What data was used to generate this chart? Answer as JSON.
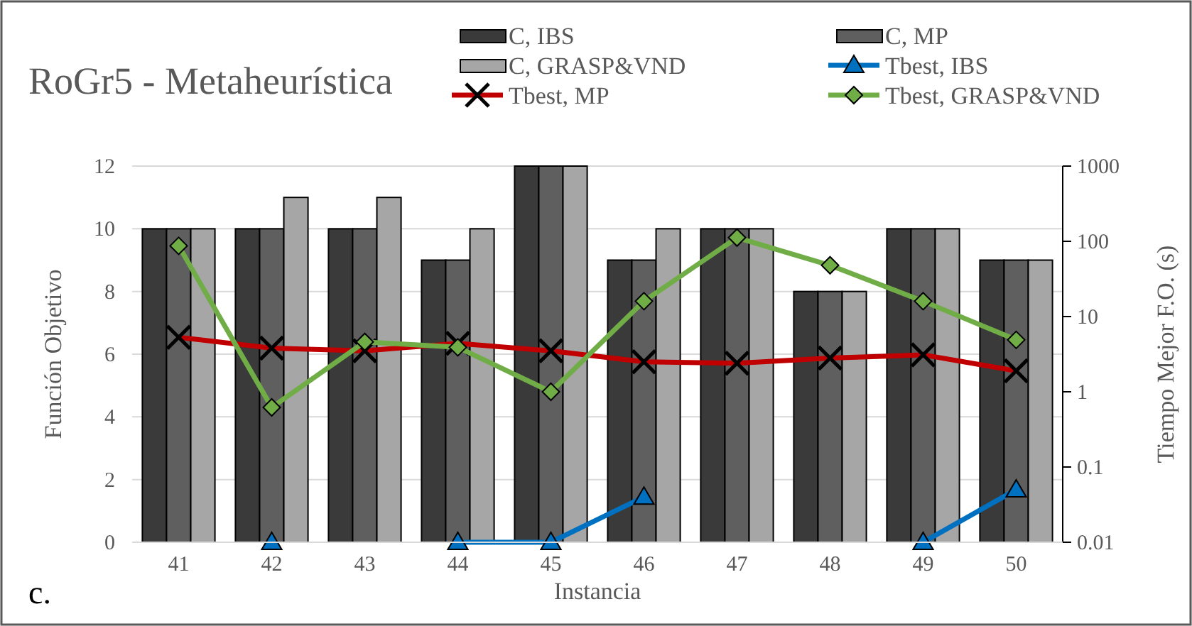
{
  "chart_data": {
    "type": "bar",
    "title": "RoGr5 - Metaheurística",
    "xlabel": "Instancia",
    "ylabel": "Función Objetivo",
    "y2label": "Tiempo Mejor F.O. (s)",
    "annotations": [
      "c."
    ],
    "categories": [
      "41",
      "42",
      "43",
      "44",
      "45",
      "46",
      "47",
      "48",
      "49",
      "50"
    ],
    "series": [
      {
        "name": "C, IBS",
        "color": "#3a3a3a",
        "values": [
          10,
          10,
          10,
          9,
          12,
          9,
          10,
          8,
          10,
          9
        ]
      },
      {
        "name": "C, MP",
        "color": "#5f5f5f",
        "values": [
          10,
          10,
          10,
          9,
          12,
          9,
          10,
          8,
          10,
          9
        ]
      },
      {
        "name": "C, GRASP&VND",
        "color": "#a6a6a6",
        "values": [
          10,
          11,
          11,
          10,
          12,
          10,
          10,
          8,
          10,
          9
        ]
      },
      {
        "name": "Tbest, IBS",
        "type": "line",
        "axis": "y2",
        "marker": "triangle",
        "color": "#0070c0",
        "values": [
          null,
          0.01,
          null,
          0.01,
          0.01,
          0.04,
          null,
          null,
          0.01,
          0.05
        ]
      },
      {
        "name": "Tbest, MP",
        "type": "line",
        "axis": "y2",
        "marker": "cross",
        "color": "#c00000",
        "values": [
          5.3,
          3.8,
          3.5,
          4.4,
          3.5,
          2.5,
          2.4,
          2.8,
          3.1,
          1.9
        ]
      },
      {
        "name": "Tbest, GRASP&VND",
        "type": "line",
        "axis": "y2",
        "marker": "diamond",
        "color": "#70ad47",
        "values": [
          87,
          0.62,
          4.6,
          3.9,
          1.0,
          16,
          112,
          48,
          16,
          4.9
        ]
      }
    ],
    "ylim": [
      0,
      12
    ],
    "yticks": [
      0,
      2,
      4,
      6,
      8,
      10,
      12
    ],
    "y2lim": [
      0.01,
      1000
    ],
    "y2ticks": [
      0.01,
      0.1,
      1,
      10,
      100,
      1000
    ],
    "log": "y2",
    "grid": "y",
    "legend": "top"
  }
}
